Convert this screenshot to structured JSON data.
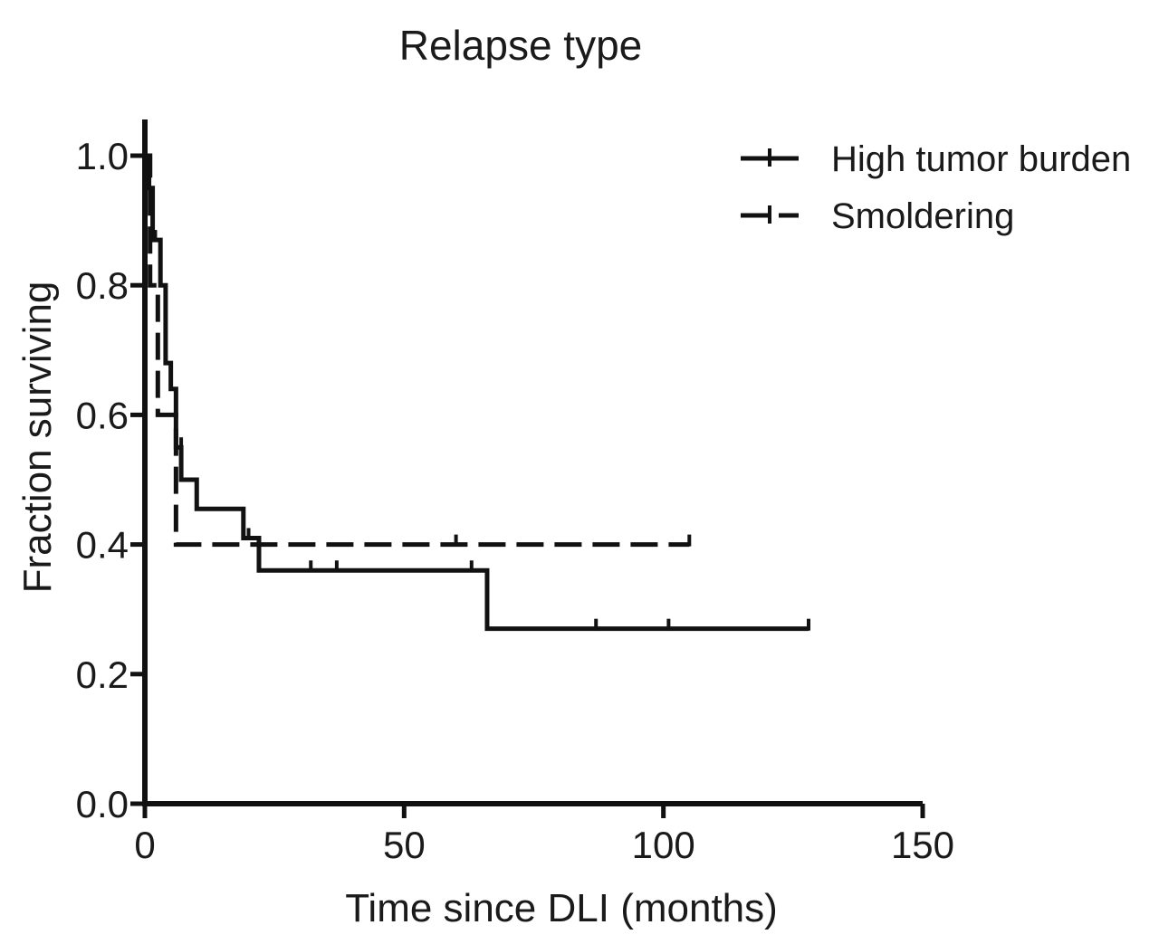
{
  "chart_data": {
    "type": "line",
    "subtype": "kaplan-meier",
    "title": "Relapse type",
    "xlabel": "Time since DLI (months)",
    "ylabel": "Fraction surviving",
    "xlim": [
      0,
      150
    ],
    "ylim": [
      0,
      1.0
    ],
    "xticks": [
      0,
      50,
      100,
      150
    ],
    "yticks": [
      0.0,
      0.2,
      0.4,
      0.6,
      0.8,
      1.0
    ],
    "xtick_labels": [
      "0",
      "50",
      "100",
      "150"
    ],
    "ytick_labels": [
      "0.0",
      "0.2",
      "0.4",
      "0.6",
      "0.8",
      "1.0"
    ],
    "legend_position": "top-right",
    "series": [
      {
        "name": "High tumor burden",
        "style": "solid",
        "steps": [
          [
            0,
            1.0
          ],
          [
            0.8,
            0.95
          ],
          [
            1.5,
            0.87
          ],
          [
            3,
            0.8
          ],
          [
            4,
            0.68
          ],
          [
            5,
            0.64
          ],
          [
            6,
            0.55
          ],
          [
            7,
            0.5
          ],
          [
            10,
            0.455
          ],
          [
            19,
            0.41
          ],
          [
            22,
            0.36
          ],
          [
            66,
            0.27
          ],
          [
            128,
            0.27
          ]
        ],
        "censored": [
          [
            2,
            0.87
          ],
          [
            7,
            0.55
          ],
          [
            20,
            0.41
          ],
          [
            32,
            0.36
          ],
          [
            37,
            0.36
          ],
          [
            63,
            0.36
          ],
          [
            87,
            0.27
          ],
          [
            101,
            0.27
          ],
          [
            128,
            0.27
          ]
        ]
      },
      {
        "name": "Smoldering",
        "style": "dashed",
        "steps": [
          [
            0,
            1.0
          ],
          [
            1,
            0.8
          ],
          [
            2.5,
            0.6
          ],
          [
            6,
            0.4
          ],
          [
            105,
            0.4
          ]
        ],
        "censored": [
          [
            60,
            0.4
          ],
          [
            105,
            0.4
          ]
        ]
      }
    ]
  }
}
